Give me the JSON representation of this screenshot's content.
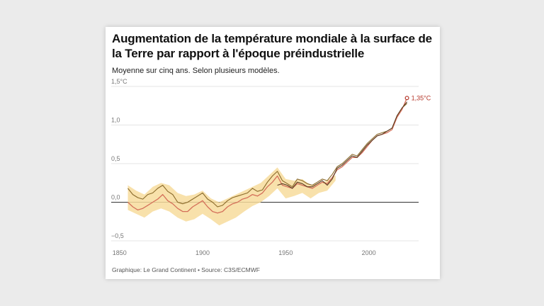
{
  "title": "Augmentation de la température mondiale à la surface de la Terre par rapport à l'époque préindustrielle",
  "subtitle": "Moyenne sur cinq ans. Selon plusieurs modèles.",
  "footer": "Graphique: Le Grand Continent • Source: C3S/ECMWF",
  "colors": {
    "band": "#f7dc9c",
    "model_a": "#8a6a2a",
    "model_b": "#d4705a",
    "model_c": "#5a3a20",
    "accent": "#b5372a",
    "zero_line": "#333333",
    "grid": "#dddddd"
  },
  "chart_data": {
    "type": "line",
    "title": "Augmentation de la température mondiale à la surface de la Terre par rapport à l'époque préindustrielle",
    "subtitle": "Moyenne sur cinq ans. Selon plusieurs modèles.",
    "xlabel": "",
    "ylabel": "",
    "xlim": [
      1845,
      2030
    ],
    "ylim": [
      -0.5,
      1.5
    ],
    "x_ticks": [
      1850,
      1900,
      1950,
      2000
    ],
    "x_tick_labels": [
      "1850",
      "1900",
      "1950",
      "2000"
    ],
    "y_ticks": [
      -0.5,
      0,
      0.5,
      1.0,
      1.5
    ],
    "y_tick_labels": [
      "−0,5",
      "0,0",
      "0,5",
      "1,0",
      "1,5°C"
    ],
    "grid": true,
    "uncertainty_band": {
      "x": [
        1855,
        1860,
        1865,
        1870,
        1875,
        1880,
        1885,
        1890,
        1895,
        1900,
        1905,
        1910,
        1915,
        1920,
        1925,
        1930,
        1935,
        1940,
        1945,
        1950,
        1955,
        1960,
        1965,
        1970,
        1975,
        1980
      ],
      "lower": [
        -0.1,
        -0.15,
        -0.2,
        -0.12,
        -0.08,
        -0.12,
        -0.2,
        -0.25,
        -0.22,
        -0.15,
        -0.22,
        -0.3,
        -0.25,
        -0.2,
        -0.12,
        -0.05,
        0.0,
        0.08,
        0.18,
        0.05,
        0.08,
        0.12,
        0.05,
        0.12,
        0.15,
        0.28
      ],
      "upper": [
        0.22,
        0.15,
        0.1,
        0.2,
        0.25,
        0.22,
        0.12,
        0.08,
        0.1,
        0.15,
        0.05,
        0.0,
        0.05,
        0.1,
        0.15,
        0.2,
        0.25,
        0.35,
        0.45,
        0.3,
        0.28,
        0.3,
        0.22,
        0.25,
        0.28,
        0.35
      ]
    },
    "series": [
      {
        "x": [
          1855,
          1858,
          1861,
          1864,
          1867,
          1870,
          1873,
          1876,
          1879,
          1882,
          1885,
          1888,
          1891,
          1894,
          1897,
          1900,
          1903,
          1906,
          1909,
          1912,
          1915,
          1918,
          1921,
          1924,
          1927,
          1930,
          1933,
          1936,
          1939,
          1942,
          1945,
          1948,
          1951,
          1954,
          1957,
          1960,
          1963,
          1966,
          1969,
          1972,
          1975,
          1978,
          1981,
          1984,
          1987,
          1990,
          1993,
          1996,
          1999,
          2002,
          2005,
          2008,
          2011,
          2014,
          2017,
          2020,
          2023
        ],
        "values": [
          0.18,
          0.1,
          0.06,
          0.04,
          0.1,
          0.12,
          0.18,
          0.22,
          0.14,
          0.1,
          0.0,
          -0.02,
          0.0,
          0.04,
          0.08,
          0.12,
          0.04,
          0.0,
          -0.06,
          -0.04,
          0.02,
          0.06,
          0.08,
          0.1,
          0.12,
          0.18,
          0.14,
          0.16,
          0.26,
          0.34,
          0.4,
          0.28,
          0.24,
          0.2,
          0.3,
          0.28,
          0.24,
          0.22,
          0.26,
          0.3,
          0.28,
          0.36,
          0.46,
          0.5,
          0.56,
          0.62,
          0.6,
          0.68,
          0.76,
          0.82,
          0.88,
          0.9,
          0.92,
          0.96,
          1.12,
          1.22,
          1.28
        ]
      },
      {
        "x": [
          1855,
          1858,
          1861,
          1864,
          1867,
          1870,
          1873,
          1876,
          1879,
          1882,
          1885,
          1888,
          1891,
          1894,
          1897,
          1900,
          1903,
          1906,
          1909,
          1912,
          1915,
          1918,
          1921,
          1924,
          1927,
          1930,
          1933,
          1936,
          1939,
          1942,
          1945,
          1948,
          1951,
          1954,
          1957,
          1960,
          1963,
          1966,
          1969,
          1972,
          1975,
          1978,
          1981,
          1984,
          1987,
          1990,
          1993,
          1996,
          1999,
          2002,
          2005,
          2008,
          2011,
          2014,
          2017,
          2020,
          2023
        ],
        "values": [
          0.0,
          -0.06,
          -0.1,
          -0.08,
          -0.04,
          0.0,
          0.04,
          0.1,
          0.02,
          -0.02,
          -0.08,
          -0.12,
          -0.12,
          -0.06,
          -0.02,
          0.02,
          -0.06,
          -0.12,
          -0.14,
          -0.12,
          -0.06,
          -0.02,
          0.0,
          0.04,
          0.06,
          0.1,
          0.08,
          0.12,
          0.2,
          0.26,
          0.34,
          0.22,
          0.2,
          0.18,
          0.24,
          0.22,
          0.2,
          0.18,
          0.22,
          0.26,
          0.24,
          0.32,
          0.42,
          0.46,
          0.52,
          0.58,
          0.58,
          0.64,
          0.72,
          0.8,
          0.86,
          0.88,
          0.9,
          0.94,
          1.1,
          1.2,
          1.35
        ]
      },
      {
        "x": [
          1945,
          1948,
          1951,
          1954,
          1957,
          1960,
          1963,
          1966,
          1969,
          1972,
          1975,
          1978,
          1981,
          1984,
          1987,
          1990,
          1993,
          1996,
          1999,
          2002,
          2005,
          2008,
          2011,
          2014,
          2017,
          2020,
          2023
        ],
        "values": [
          0.22,
          0.24,
          0.22,
          0.18,
          0.26,
          0.24,
          0.2,
          0.2,
          0.24,
          0.28,
          0.22,
          0.3,
          0.44,
          0.48,
          0.54,
          0.6,
          0.58,
          0.66,
          0.74,
          0.8,
          0.86,
          0.88,
          0.92,
          0.96,
          1.12,
          1.22,
          1.3
        ]
      }
    ],
    "annotations": [
      {
        "x": 2023,
        "y": 1.35,
        "text": "1,35°C"
      }
    ]
  }
}
